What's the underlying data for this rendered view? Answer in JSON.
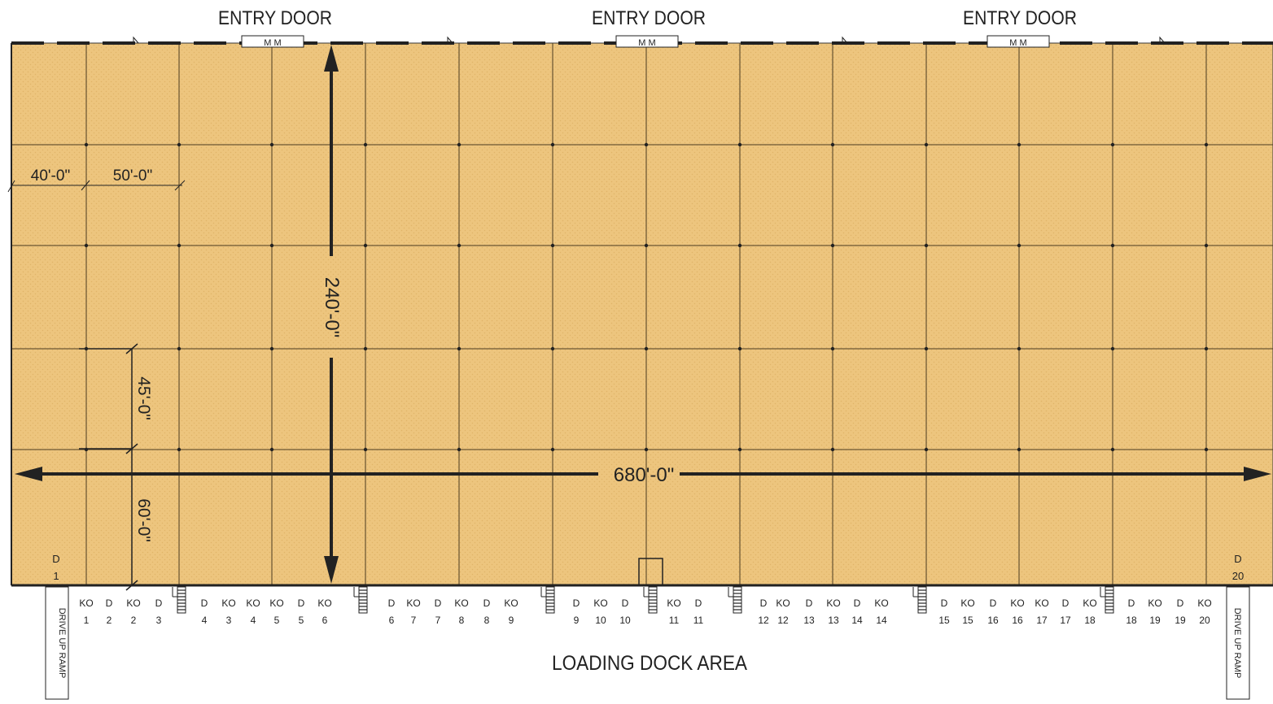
{
  "entry_doors": [
    {
      "label": "ENTRY DOOR",
      "door_text": "M  M"
    },
    {
      "label": "ENTRY DOOR",
      "door_text": "M  M"
    },
    {
      "label": "ENTRY DOOR",
      "door_text": "M  M"
    }
  ],
  "dimensions": {
    "bay_end_width": "40'-0\"",
    "bay_width": "50'-0\"",
    "building_depth": "240'-0\"",
    "bay_depth": "45'-0\"",
    "end_bay_depth": "60'-0\"",
    "building_length": "680'-0\""
  },
  "dock_area_label": "LOADING DOCK AREA",
  "ramp_left": "DRIVE UP RAMP",
  "ramp_right": "DRIVE UP RAMP",
  "interior_markers": [
    {
      "top": "D",
      "bottom": "1"
    },
    {
      "top": "D",
      "bottom": "20"
    }
  ],
  "dock_positions": [
    {
      "type": "KO",
      "num": "1"
    },
    {
      "type": "D",
      "num": "2"
    },
    {
      "type": "KO",
      "num": "2"
    },
    {
      "type": "D",
      "num": "3"
    },
    {
      "type": "D",
      "num": "4"
    },
    {
      "type": "KO",
      "num": "3"
    },
    {
      "type": "KO",
      "num": "4"
    },
    {
      "type": "KO",
      "num": "5"
    },
    {
      "type": "D",
      "num": "5"
    },
    {
      "type": "KO",
      "num": "6"
    },
    {
      "type": "D",
      "num": "6"
    },
    {
      "type": "KO",
      "num": "7"
    },
    {
      "type": "D",
      "num": "7"
    },
    {
      "type": "KO",
      "num": "8"
    },
    {
      "type": "D",
      "num": "8"
    },
    {
      "type": "KO",
      "num": "9"
    },
    {
      "type": "D",
      "num": "9"
    },
    {
      "type": "KO",
      "num": "10"
    },
    {
      "type": "D",
      "num": "10"
    },
    {
      "type": "KO",
      "num": "11"
    },
    {
      "type": "D",
      "num": "11"
    },
    {
      "type": "D",
      "num": "12"
    },
    {
      "type": "KO",
      "num": "12"
    },
    {
      "type": "D",
      "num": "13"
    },
    {
      "type": "KO",
      "num": "13"
    },
    {
      "type": "D",
      "num": "14"
    },
    {
      "type": "KO",
      "num": "14"
    },
    {
      "type": "D",
      "num": "15"
    },
    {
      "type": "KO",
      "num": "15"
    },
    {
      "type": "D",
      "num": "16"
    },
    {
      "type": "KO",
      "num": "16"
    },
    {
      "type": "KO",
      "num": "17"
    },
    {
      "type": "D",
      "num": "17"
    },
    {
      "type": "KO",
      "num": "18"
    },
    {
      "type": "D",
      "num": "18"
    },
    {
      "type": "KO",
      "num": "19"
    },
    {
      "type": "D",
      "num": "19"
    },
    {
      "type": "KO",
      "num": "20"
    }
  ],
  "colors": {
    "floor": "#EDC57E",
    "floor_pattern": "#E0B468",
    "grid": "#4a3a20",
    "wall": "#222222",
    "dimension": "#222222"
  }
}
